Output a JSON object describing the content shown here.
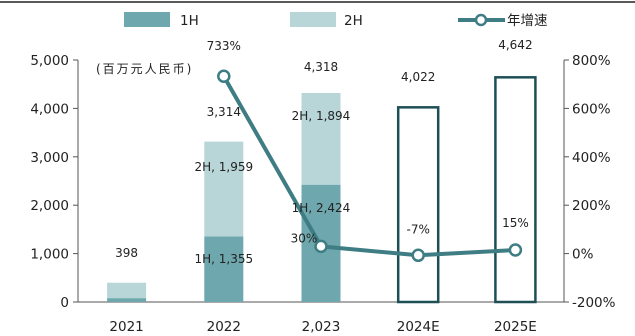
{
  "chart_data": {
    "type": "bar",
    "title": "",
    "unit_label": "(百万元人民币)",
    "categories": [
      "2021",
      "2022",
      "2,023",
      "2024E",
      "2025E"
    ],
    "series": [
      {
        "name": "1H",
        "type": "bar",
        "color": "#6ea7ad",
        "values": [
          80,
          1355,
          2424,
          null,
          null
        ]
      },
      {
        "name": "2H",
        "type": "bar",
        "color": "#b8d5d8",
        "values": [
          318,
          1959,
          1894,
          null,
          null
        ]
      },
      {
        "name": "年增速",
        "type": "line",
        "axis": "right",
        "color": "#3e7d84",
        "values": [
          null,
          733,
          30,
          -7,
          15
        ]
      }
    ],
    "forecast_totals": [
      null,
      null,
      null,
      4022,
      4642
    ],
    "forecast_outline_color": "#1d4f55",
    "total_labels": [
      "398",
      "3,314",
      "4,318",
      "4,022",
      "4,642"
    ],
    "half_labels": {
      "1": {
        "h1": "1H, 1,355",
        "h2": "2H, 1,959"
      },
      "2": {
        "h1": "1H, 2,424",
        "h2": "2H, 1,894"
      }
    },
    "growth_labels": [
      null,
      "733%",
      "30%",
      "-7%",
      "15%"
    ],
    "y_left": {
      "min": 0,
      "max": 5000,
      "ticks": [
        0,
        1000,
        2000,
        3000,
        4000,
        5000
      ],
      "tick_labels": [
        "0",
        "1,000",
        "2,000",
        "3,000",
        "4,000",
        "5,000"
      ]
    },
    "y_right": {
      "min": -200,
      "max": 800,
      "ticks": [
        -200,
        0,
        200,
        400,
        600,
        800
      ],
      "tick_labels": [
        "-200%",
        "0%",
        "200%",
        "400%",
        "600%",
        "800%"
      ]
    },
    "legend": {
      "position": "top",
      "items": [
        "1H",
        "2H",
        "年增速"
      ]
    },
    "grid": false
  }
}
